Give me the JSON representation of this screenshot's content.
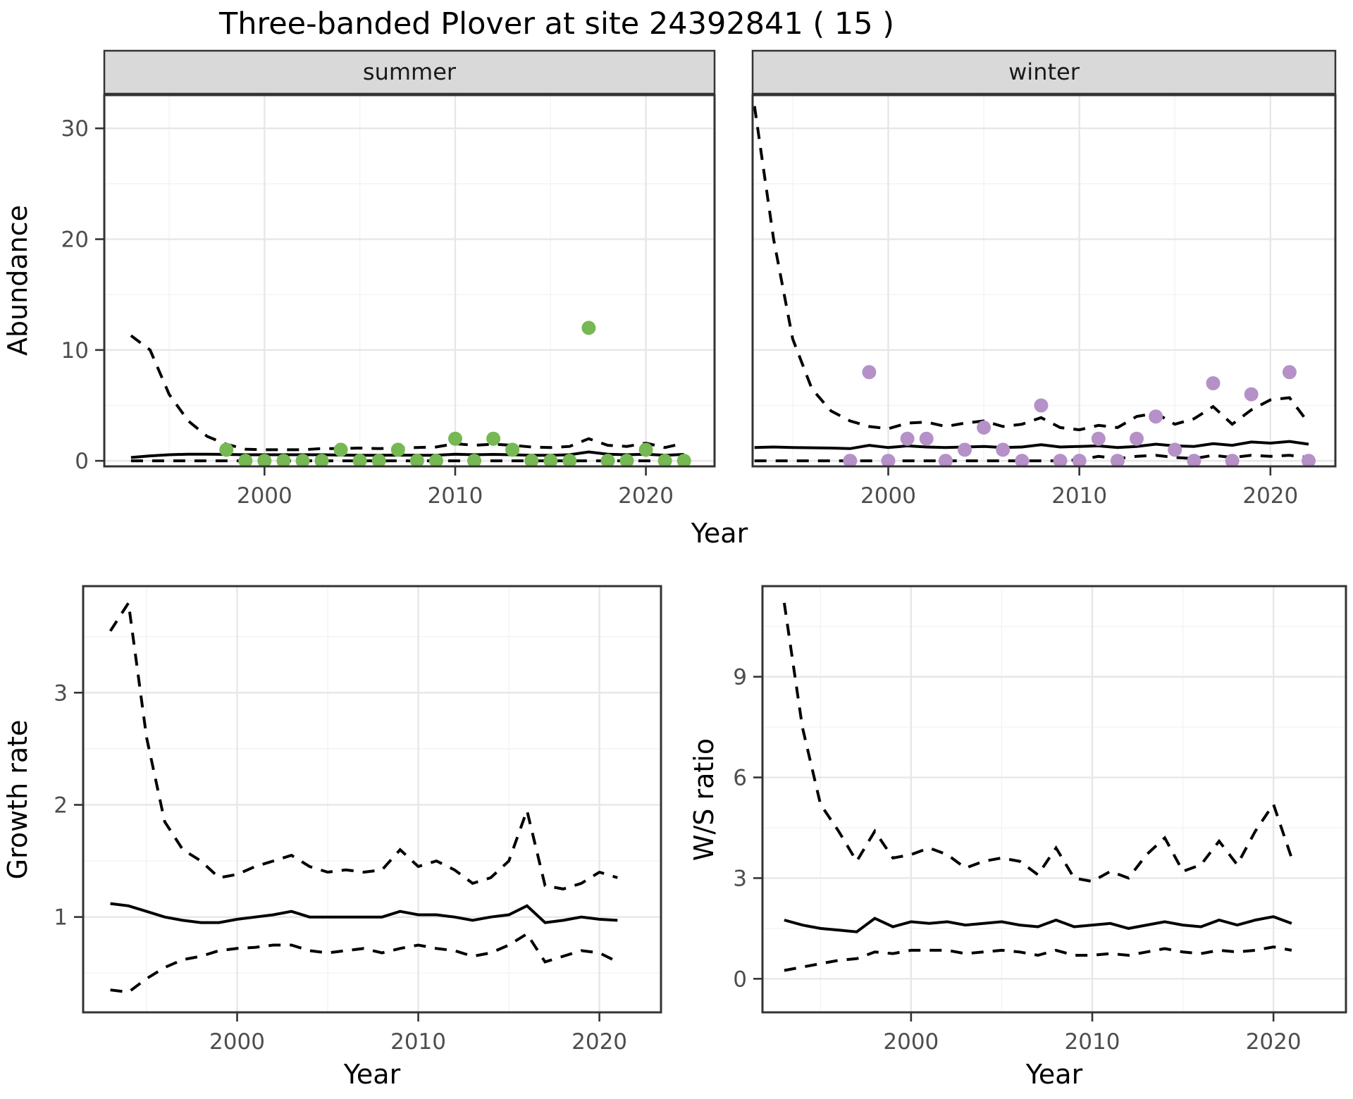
{
  "title": "Three-banded Plover at site 24392841 ( 15 )",
  "axis_titles": {
    "abundance": "Abundance",
    "year_top": "Year",
    "growth": "Growth rate",
    "year_bottom_left": "Year",
    "ws": "W/S ratio",
    "year_bottom_right": "Year"
  },
  "colors": {
    "summer_point": "#76B853",
    "winter_point": "#B591C8",
    "line": "#000000",
    "strip_bg": "#D9D9D9",
    "strip_border": "#333333",
    "panel_border": "#333333",
    "grid_major": "#E7E7E7",
    "grid_minor": "#F3F3F3",
    "tick_mark": "#333333"
  },
  "chart_data": [
    {
      "id": "abundance_summer",
      "type": "scatter",
      "facet_label": "summer",
      "ylabel": "Abundance",
      "xlabel": "Year",
      "xlim": [
        1991.6,
        2023.6
      ],
      "ylim": [
        -0.5,
        33
      ],
      "x_major": [
        2000,
        2010,
        2020
      ],
      "x_minor": [
        1995,
        2005,
        2015
      ],
      "x_tick_labels": [
        "2000",
        "2010",
        "2020"
      ],
      "y_major": [
        0,
        10,
        20,
        30
      ],
      "y_minor": [
        5,
        15,
        25
      ],
      "y_tick_labels": [
        "0",
        "10",
        "20",
        "30"
      ],
      "show_y_tick_labels": true,
      "points": {
        "color": "#76B853",
        "years": [
          1998,
          1999,
          2000,
          2001,
          2002,
          2003,
          2004,
          2005,
          2006,
          2007,
          2008,
          2009,
          2010,
          2011,
          2012,
          2013,
          2014,
          2015,
          2016,
          2017,
          2018,
          2019,
          2020,
          2021,
          2022
        ],
        "values": [
          1,
          0,
          0,
          0,
          0,
          0,
          1,
          0,
          0,
          1,
          0,
          0,
          2,
          0,
          2,
          1,
          0,
          0,
          0,
          12,
          0,
          0,
          1,
          0,
          0
        ]
      },
      "lines": {
        "upper_ci": {
          "style": "dashed",
          "years": [
            1993,
            1994,
            1995,
            1996,
            1997,
            1998,
            1999,
            2000,
            2001,
            2002,
            2003,
            2004,
            2005,
            2006,
            2007,
            2008,
            2009,
            2010,
            2011,
            2012,
            2013,
            2014,
            2015,
            2016,
            2017,
            2018,
            2019,
            2020,
            2021,
            2022
          ],
          "values": [
            11.3,
            10.0,
            6.0,
            3.6,
            2.2,
            1.5,
            1.05,
            1.0,
            1.0,
            1.0,
            1.1,
            1.1,
            1.15,
            1.1,
            1.15,
            1.2,
            1.25,
            1.55,
            1.4,
            1.5,
            1.4,
            1.25,
            1.2,
            1.3,
            2.0,
            1.4,
            1.3,
            1.6,
            1.2,
            1.6
          ]
        },
        "mean": {
          "style": "solid",
          "years": [
            1993,
            1994,
            1995,
            1996,
            1997,
            1998,
            1999,
            2000,
            2001,
            2002,
            2003,
            2004,
            2005,
            2006,
            2007,
            2008,
            2009,
            2010,
            2011,
            2012,
            2013,
            2014,
            2015,
            2016,
            2017,
            2018,
            2019,
            2020,
            2021,
            2022
          ],
          "values": [
            0.3,
            0.45,
            0.55,
            0.6,
            0.6,
            0.58,
            0.55,
            0.55,
            0.55,
            0.55,
            0.55,
            0.52,
            0.5,
            0.5,
            0.52,
            0.5,
            0.5,
            0.6,
            0.55,
            0.58,
            0.55,
            0.5,
            0.5,
            0.55,
            0.8,
            0.6,
            0.55,
            0.6,
            0.5,
            0.58
          ]
        },
        "lower_ci": {
          "style": "dashed",
          "years": [
            1993,
            1994,
            1995,
            1996,
            1997,
            1998,
            1999,
            2000,
            2001,
            2002,
            2003,
            2004,
            2005,
            2006,
            2007,
            2008,
            2009,
            2010,
            2011,
            2012,
            2013,
            2014,
            2015,
            2016,
            2017,
            2018,
            2019,
            2020,
            2021,
            2022
          ],
          "values": [
            0,
            0,
            0,
            0,
            0,
            0,
            0,
            0,
            0,
            0,
            0,
            0,
            0,
            0,
            0,
            0,
            0,
            0,
            0,
            0,
            0,
            0,
            0,
            0,
            0,
            0,
            0,
            0,
            0,
            0
          ]
        }
      }
    },
    {
      "id": "abundance_winter",
      "type": "scatter",
      "facet_label": "winter",
      "ylabel": "Abundance",
      "xlabel": "Year",
      "xlim": [
        1992.9,
        2023.4
      ],
      "ylim": [
        -0.5,
        33
      ],
      "x_major": [
        2000,
        2010,
        2020
      ],
      "x_minor": [
        1995,
        2005,
        2015
      ],
      "x_tick_labels": [
        "2000",
        "2010",
        "2020"
      ],
      "y_major": [
        0,
        10,
        20,
        30
      ],
      "y_minor": [
        5,
        15,
        25
      ],
      "y_tick_labels": [
        "0",
        "10",
        "20",
        "30"
      ],
      "show_y_tick_labels": false,
      "points": {
        "color": "#B591C8",
        "years": [
          1998,
          1999,
          2000,
          2001,
          2002,
          2003,
          2004,
          2005,
          2006,
          2007,
          2008,
          2009,
          2010,
          2011,
          2012,
          2013,
          2014,
          2015,
          2016,
          2017,
          2018,
          2019,
          2021,
          2022
        ],
        "values": [
          0,
          8,
          0,
          2,
          2,
          0,
          1,
          3,
          1,
          0,
          5,
          0,
          0,
          2,
          0,
          2,
          4,
          1,
          0,
          7,
          0,
          6,
          8,
          0
        ]
      },
      "lines": {
        "upper_ci": {
          "style": "dashed",
          "years": [
            1993,
            1994,
            1995,
            1996,
            1997,
            1998,
            1999,
            2000,
            2001,
            2002,
            2003,
            2004,
            2005,
            2006,
            2007,
            2008,
            2009,
            2010,
            2011,
            2012,
            2013,
            2014,
            2015,
            2016,
            2017,
            2018,
            2019,
            2020,
            2021,
            2022
          ],
          "values": [
            32,
            20,
            11,
            6.5,
            4.5,
            3.6,
            3.1,
            2.9,
            3.4,
            3.5,
            3.1,
            3.4,
            3.6,
            3.1,
            3.3,
            3.9,
            3.0,
            2.8,
            3.2,
            3.0,
            4.0,
            4.3,
            3.3,
            3.8,
            4.9,
            3.3,
            4.6,
            5.5,
            5.7,
            3.4
          ]
        },
        "mean": {
          "style": "solid",
          "years": [
            1993,
            1994,
            1995,
            1996,
            1997,
            1998,
            1999,
            2000,
            2001,
            2002,
            2003,
            2004,
            2005,
            2006,
            2007,
            2008,
            2009,
            2010,
            2011,
            2012,
            2013,
            2014,
            2015,
            2016,
            2017,
            2018,
            2019,
            2020,
            2021,
            2022
          ],
          "values": [
            1.2,
            1.25,
            1.2,
            1.18,
            1.15,
            1.1,
            1.4,
            1.2,
            1.35,
            1.25,
            1.2,
            1.25,
            1.3,
            1.2,
            1.25,
            1.45,
            1.25,
            1.3,
            1.35,
            1.2,
            1.3,
            1.5,
            1.35,
            1.3,
            1.55,
            1.4,
            1.7,
            1.6,
            1.75,
            1.5
          ]
        },
        "lower_ci": {
          "style": "dashed",
          "years": [
            1993,
            1994,
            1995,
            1996,
            1997,
            1998,
            1999,
            2000,
            2001,
            2002,
            2003,
            2004,
            2005,
            2006,
            2007,
            2008,
            2009,
            2010,
            2011,
            2012,
            2013,
            2014,
            2015,
            2016,
            2017,
            2018,
            2019,
            2020,
            2021,
            2022
          ],
          "values": [
            0,
            0,
            0,
            0,
            0,
            0,
            0,
            0,
            0,
            0,
            0,
            0,
            0,
            0,
            0,
            0,
            0,
            0.1,
            0.4,
            0.2,
            0.4,
            0.5,
            0.3,
            0.2,
            0.5,
            0.3,
            0.5,
            0.4,
            0.5,
            0.3
          ]
        }
      }
    },
    {
      "id": "growth_rate",
      "type": "line",
      "facet_label": null,
      "ylabel": "Growth rate",
      "xlabel": "Year",
      "xlim": [
        1991.5,
        2023.4
      ],
      "ylim": [
        0.15,
        3.95
      ],
      "x_major": [
        2000,
        2010,
        2020
      ],
      "x_minor": [
        1995,
        2005,
        2015
      ],
      "x_tick_labels": [
        "2000",
        "2010",
        "2020"
      ],
      "y_major": [
        1,
        2,
        3
      ],
      "y_minor": [
        0.5,
        1.5,
        2.5,
        3.5
      ],
      "y_tick_labels": [
        "1",
        "2",
        "3"
      ],
      "show_y_tick_labels": true,
      "points": null,
      "lines": {
        "upper_ci": {
          "style": "dashed",
          "years": [
            1993,
            1994,
            1995,
            1996,
            1997,
            1998,
            1999,
            2000,
            2001,
            2002,
            2003,
            2004,
            2005,
            2006,
            2007,
            2008,
            2009,
            2010,
            2011,
            2012,
            2013,
            2014,
            2015,
            2016,
            2017,
            2018,
            2019,
            2020,
            2021
          ],
          "values": [
            3.55,
            3.8,
            2.6,
            1.85,
            1.6,
            1.5,
            1.35,
            1.38,
            1.45,
            1.5,
            1.55,
            1.45,
            1.4,
            1.42,
            1.4,
            1.42,
            1.6,
            1.45,
            1.5,
            1.42,
            1.3,
            1.35,
            1.5,
            1.95,
            1.28,
            1.25,
            1.3,
            1.4,
            1.35
          ]
        },
        "mean": {
          "style": "solid",
          "years": [
            1993,
            1994,
            1995,
            1996,
            1997,
            1998,
            1999,
            2000,
            2001,
            2002,
            2003,
            2004,
            2005,
            2006,
            2007,
            2008,
            2009,
            2010,
            2011,
            2012,
            2013,
            2014,
            2015,
            2016,
            2017,
            2018,
            2019,
            2020,
            2021
          ],
          "values": [
            1.12,
            1.1,
            1.05,
            1.0,
            0.97,
            0.95,
            0.95,
            0.98,
            1.0,
            1.02,
            1.05,
            1.0,
            1.0,
            1.0,
            1.0,
            1.0,
            1.05,
            1.02,
            1.02,
            1.0,
            0.97,
            1.0,
            1.02,
            1.1,
            0.95,
            0.97,
            1.0,
            0.98,
            0.97
          ]
        },
        "lower_ci": {
          "style": "dashed",
          "years": [
            1993,
            1994,
            1995,
            1996,
            1997,
            1998,
            1999,
            2000,
            2001,
            2002,
            2003,
            2004,
            2005,
            2006,
            2007,
            2008,
            2009,
            2010,
            2011,
            2012,
            2013,
            2014,
            2015,
            2016,
            2017,
            2018,
            2019,
            2020,
            2021
          ],
          "values": [
            0.35,
            0.33,
            0.45,
            0.55,
            0.62,
            0.65,
            0.7,
            0.72,
            0.73,
            0.75,
            0.75,
            0.7,
            0.68,
            0.7,
            0.72,
            0.68,
            0.72,
            0.75,
            0.72,
            0.7,
            0.65,
            0.68,
            0.75,
            0.85,
            0.6,
            0.65,
            0.7,
            0.68,
            0.6
          ]
        }
      }
    },
    {
      "id": "ws_ratio",
      "type": "line",
      "facet_label": null,
      "ylabel": "W/S ratio",
      "xlabel": "Year",
      "xlim": [
        1991.8,
        2024.0
      ],
      "ylim": [
        -1.0,
        11.7
      ],
      "x_major": [
        2000,
        2010,
        2020
      ],
      "x_minor": [
        1995,
        2005,
        2015
      ],
      "x_tick_labels": [
        "2000",
        "2010",
        "2020"
      ],
      "y_major": [
        0,
        3,
        6,
        9
      ],
      "y_minor": [
        1.5,
        4.5,
        7.5,
        10.5
      ],
      "y_tick_labels": [
        "0",
        "3",
        "6",
        "9"
      ],
      "show_y_tick_labels": true,
      "points": null,
      "lines": {
        "upper_ci": {
          "style": "dashed",
          "years": [
            1993,
            1994,
            1995,
            1996,
            1997,
            1998,
            1999,
            2000,
            2001,
            2002,
            2003,
            2004,
            2005,
            2006,
            2007,
            2008,
            2009,
            2010,
            2011,
            2012,
            2013,
            2014,
            2015,
            2016,
            2017,
            2018,
            2019,
            2020,
            2021
          ],
          "values": [
            11.2,
            7.5,
            5.2,
            4.4,
            3.5,
            4.4,
            3.6,
            3.7,
            3.9,
            3.7,
            3.3,
            3.5,
            3.6,
            3.5,
            3.1,
            3.9,
            3.0,
            2.9,
            3.2,
            3.0,
            3.7,
            4.2,
            3.2,
            3.4,
            4.1,
            3.4,
            4.4,
            5.2,
            3.6
          ]
        },
        "mean": {
          "style": "solid",
          "years": [
            1993,
            1994,
            1995,
            1996,
            1997,
            1998,
            1999,
            2000,
            2001,
            2002,
            2003,
            2004,
            2005,
            2006,
            2007,
            2008,
            2009,
            2010,
            2011,
            2012,
            2013,
            2014,
            2015,
            2016,
            2017,
            2018,
            2019,
            2020,
            2021
          ],
          "values": [
            1.75,
            1.6,
            1.5,
            1.45,
            1.4,
            1.8,
            1.55,
            1.7,
            1.65,
            1.7,
            1.6,
            1.65,
            1.7,
            1.6,
            1.55,
            1.75,
            1.55,
            1.6,
            1.65,
            1.5,
            1.6,
            1.7,
            1.6,
            1.55,
            1.75,
            1.6,
            1.75,
            1.85,
            1.65
          ]
        },
        "lower_ci": {
          "style": "dashed",
          "years": [
            1993,
            1994,
            1995,
            1996,
            1997,
            1998,
            1999,
            2000,
            2001,
            2002,
            2003,
            2004,
            2005,
            2006,
            2007,
            2008,
            2009,
            2010,
            2011,
            2012,
            2013,
            2014,
            2015,
            2016,
            2017,
            2018,
            2019,
            2020,
            2021
          ],
          "values": [
            0.25,
            0.35,
            0.45,
            0.55,
            0.6,
            0.8,
            0.75,
            0.85,
            0.85,
            0.85,
            0.75,
            0.8,
            0.85,
            0.8,
            0.7,
            0.85,
            0.7,
            0.7,
            0.75,
            0.7,
            0.8,
            0.9,
            0.8,
            0.75,
            0.85,
            0.8,
            0.85,
            0.95,
            0.85
          ]
        }
      }
    }
  ]
}
